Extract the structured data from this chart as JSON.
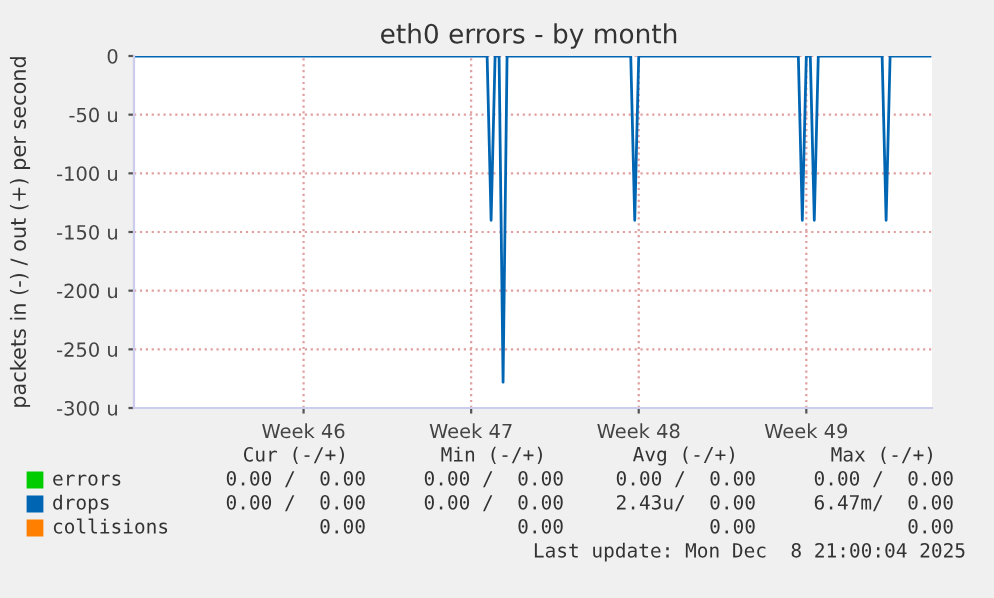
{
  "chart_data": {
    "type": "line",
    "title": "eth0 errors - by month",
    "ylabel": "packets in (-) / out (+) per second",
    "categories": [
      null,
      null,
      null,
      null,
      null,
      null,
      null,
      null,
      null,
      null,
      null,
      null,
      null,
      null,
      null,
      null,
      null,
      null,
      null,
      null,
      null,
      null,
      null,
      null,
      null,
      null,
      null,
      null,
      null,
      null,
      null,
      null,
      null,
      null,
      null,
      null,
      null,
      null,
      null,
      null,
      null,
      null,
      "Week 46",
      null,
      null,
      null,
      null,
      null,
      null,
      null,
      null,
      null,
      null,
      null,
      null,
      null,
      null,
      null,
      null,
      null,
      null,
      null,
      null,
      null,
      null,
      null,
      null,
      null,
      null,
      null,
      null,
      null,
      null,
      null,
      null,
      null,
      null,
      null,
      null,
      null,
      null,
      null,
      null,
      null,
      "Week 47",
      null,
      null,
      null,
      null,
      null,
      null,
      null,
      null,
      null,
      null,
      null,
      null,
      null,
      null,
      null,
      null,
      null,
      null,
      null,
      null,
      null,
      null,
      null,
      null,
      null,
      null,
      null,
      null,
      null,
      null,
      null,
      null,
      null,
      null,
      null,
      null,
      null,
      null,
      null,
      null,
      null,
      "Week 48",
      null,
      null,
      null,
      null,
      null,
      null,
      null,
      null,
      null,
      null,
      null,
      null,
      null,
      null,
      null,
      null,
      null,
      null,
      null,
      null,
      null,
      null,
      null,
      null,
      null,
      null,
      null,
      null,
      null,
      null,
      null,
      null,
      null,
      null,
      null,
      null,
      null,
      null,
      null,
      null,
      null,
      "Week 49",
      null,
      null,
      null,
      null,
      null,
      null,
      null,
      null,
      null,
      null,
      null,
      null,
      null,
      null,
      null,
      null,
      null,
      null,
      null,
      null,
      null,
      null,
      null,
      null,
      null,
      null,
      null,
      null,
      null,
      null,
      null
    ],
    "ylim": [
      -300,
      0
    ],
    "yticks": [
      {
        "value": -300,
        "label": "-300 u"
      },
      {
        "value": -250,
        "label": "-250 u"
      },
      {
        "value": -200,
        "label": "-200 u"
      },
      {
        "value": -150,
        "label": "-150 u"
      },
      {
        "value": -100,
        "label": "-100 u"
      },
      {
        "value": -50,
        "label": "-50 u"
      },
      0
    ],
    "grid": true,
    "legend": "bottom",
    "series": [
      {
        "name": "errors",
        "color": "#00cc00",
        "values": [
          null,
          null,
          null,
          null,
          null,
          null,
          null,
          null,
          null,
          null,
          null,
          null,
          null,
          null,
          null,
          null,
          null,
          null,
          null,
          null,
          null,
          null,
          null,
          null,
          null,
          null,
          null,
          null,
          null,
          null,
          null,
          null,
          null,
          null,
          null,
          null,
          null,
          null,
          null,
          null,
          null,
          null,
          null,
          null,
          null,
          null,
          null,
          null,
          null,
          null,
          null,
          null,
          null,
          null,
          null,
          null,
          null,
          null,
          null,
          null,
          null,
          null,
          null,
          null,
          null,
          null,
          null,
          null,
          null,
          null,
          null,
          null,
          null,
          null,
          null,
          null,
          null,
          null,
          null,
          null,
          null,
          null,
          null,
          null,
          null,
          null,
          null,
          null,
          null,
          null,
          null,
          null,
          null,
          null,
          null,
          null,
          null,
          null,
          null,
          null,
          null,
          null,
          null,
          null,
          null,
          null,
          null,
          null,
          null,
          null,
          null,
          null,
          null,
          null,
          null,
          null,
          null,
          null,
          null,
          null,
          null,
          null,
          null,
          null,
          null,
          null,
          null,
          null,
          null,
          null,
          null,
          null,
          null,
          null,
          null,
          null,
          null,
          null,
          null,
          null,
          null,
          null,
          null,
          null,
          null,
          null,
          null,
          null,
          null,
          null,
          null,
          null,
          null,
          null,
          null,
          null,
          null,
          null,
          null,
          null,
          null,
          null,
          null,
          null,
          null,
          null,
          null,
          null,
          null,
          null,
          null,
          null,
          null,
          null,
          null,
          null,
          null,
          null,
          null,
          null,
          null,
          null,
          null,
          null,
          null,
          null,
          null,
          null,
          null,
          null,
          null,
          null,
          null,
          null,
          null,
          null,
          null,
          null,
          null,
          null
        ]
      },
      {
        "name": "drops",
        "color": "#0066b3",
        "values": [
          0,
          0,
          0,
          0,
          0,
          0,
          0,
          0,
          0,
          0,
          0,
          0,
          0,
          0,
          0,
          0,
          0,
          0,
          0,
          0,
          0,
          0,
          0,
          0,
          0,
          0,
          0,
          0,
          0,
          0,
          0,
          0,
          0,
          0,
          0,
          0,
          0,
          0,
          0,
          0,
          0,
          0,
          0,
          0,
          0,
          0,
          0,
          0,
          0,
          0,
          0,
          0,
          0,
          0,
          0,
          0,
          0,
          0,
          0,
          0,
          0,
          0,
          0,
          0,
          0,
          0,
          0,
          0,
          0,
          0,
          0,
          0,
          0,
          0,
          0,
          0,
          0,
          0,
          0,
          0,
          0,
          0,
          0,
          0,
          0,
          0,
          0,
          0,
          0,
          -140,
          0,
          0,
          -278,
          0,
          0,
          0,
          0,
          0,
          0,
          0,
          0,
          0,
          0,
          0,
          0,
          0,
          0,
          0,
          0,
          0,
          0,
          0,
          0,
          0,
          0,
          0,
          0,
          0,
          0,
          0,
          0,
          0,
          0,
          0,
          0,
          -140,
          0,
          0,
          0,
          0,
          0,
          0,
          0,
          0,
          0,
          0,
          0,
          0,
          0,
          0,
          0,
          0,
          0,
          0,
          0,
          0,
          0,
          0,
          0,
          0,
          0,
          0,
          0,
          0,
          0,
          0,
          0,
          0,
          0,
          0,
          0,
          0,
          0,
          0,
          0,
          0,
          0,
          -140,
          0,
          0,
          -140,
          0,
          0,
          0,
          0,
          0,
          0,
          0,
          0,
          0,
          0,
          0,
          0,
          0,
          0,
          0,
          0,
          0,
          -140,
          0,
          0,
          0,
          0,
          0,
          0,
          0,
          0,
          0,
          0,
          0
        ]
      },
      {
        "name": "collisions",
        "color": "#ff8000",
        "values": [
          null,
          null,
          null,
          null,
          null,
          null,
          null,
          null,
          null,
          null,
          null,
          null,
          null,
          null,
          null,
          null,
          null,
          null,
          null,
          null,
          null,
          null,
          null,
          null,
          null,
          null,
          null,
          null,
          null,
          null,
          null,
          null,
          null,
          null,
          null,
          null,
          null,
          null,
          null,
          null,
          null,
          null,
          null,
          null,
          null,
          null,
          null,
          null,
          null,
          null,
          null,
          null,
          null,
          null,
          null,
          null,
          null,
          null,
          null,
          null,
          null,
          null,
          null,
          null,
          null,
          null,
          null,
          null,
          null,
          null,
          null,
          null,
          null,
          null,
          null,
          null,
          null,
          null,
          null,
          null,
          null,
          null,
          null,
          null,
          null,
          null,
          null,
          null,
          null,
          null,
          null,
          null,
          null,
          null,
          null,
          null,
          null,
          null,
          null,
          null,
          null,
          null,
          null,
          null,
          null,
          null,
          null,
          null,
          null,
          null,
          null,
          null,
          null,
          null,
          null,
          null,
          null,
          null,
          null,
          null,
          null,
          null,
          null,
          null,
          null,
          null,
          null,
          null,
          null,
          null,
          null,
          null,
          null,
          null,
          null,
          null,
          null,
          null,
          null,
          null,
          null,
          null,
          null,
          null,
          null,
          null,
          null,
          null,
          null,
          null,
          null,
          null,
          null,
          null,
          null,
          null,
          null,
          null,
          null,
          null,
          null,
          null,
          null,
          null,
          null,
          null,
          null,
          null,
          null,
          null,
          null,
          null,
          null,
          null,
          null,
          null,
          null,
          null,
          null,
          null,
          null,
          null,
          null,
          null,
          null,
          null,
          null,
          null,
          null,
          null,
          null,
          null,
          null,
          null,
          null,
          null,
          null,
          null,
          null,
          null
        ]
      }
    ],
    "annotations": [
      "Cur (-/+)",
      "Min (-/+)",
      "Avg (-/+)",
      "Max (-/+)",
      "0.00 /  0.00",
      "0.00 /  0.00",
      "0.00 /  0.00",
      "0.00 /  0.00",
      "0.00 /  0.00",
      "0.00 /  0.00",
      "2.43u/  0.00",
      "6.47m/  0.00",
      "0.00",
      "0.00",
      "0.00",
      "0.00",
      "Last update: Mon Dec  8 21:00:04 2025"
    ]
  }
}
